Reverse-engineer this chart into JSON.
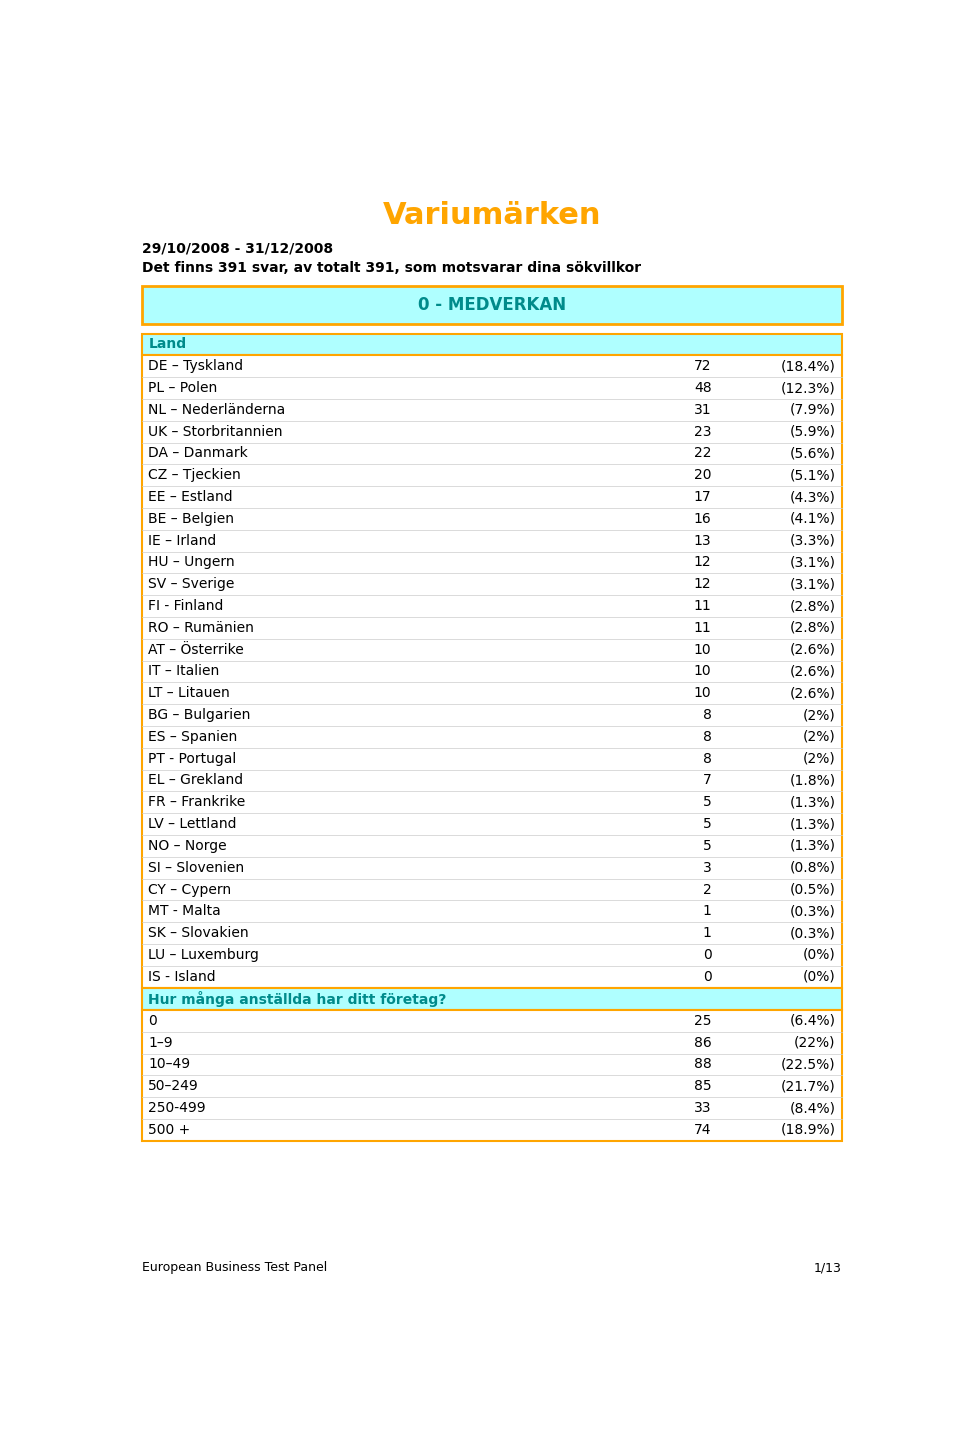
{
  "title": "Variumärken",
  "title_color": "#FFA500",
  "date_line": "29/10/2008 - 31/12/2008",
  "desc_line": "Det finns 391 svar, av totalt 391, som motsvarar dina sökvillkor",
  "section_title": "0 - MEDVERKAN",
  "table1_header": "Land",
  "table1_rows": [
    [
      "DE – Tyskland",
      "72",
      "(18.4%)"
    ],
    [
      "PL – Polen",
      "48",
      "(12.3%)"
    ],
    [
      "NL – Nederländerna",
      "31",
      "(7.9%)"
    ],
    [
      "UK – Storbritannien",
      "23",
      "(5.9%)"
    ],
    [
      "DA – Danmark",
      "22",
      "(5.6%)"
    ],
    [
      "CZ – Tjeckien",
      "20",
      "(5.1%)"
    ],
    [
      "EE – Estland",
      "17",
      "(4.3%)"
    ],
    [
      "BE – Belgien",
      "16",
      "(4.1%)"
    ],
    [
      "IE – Irland",
      "13",
      "(3.3%)"
    ],
    [
      "HU – Ungern",
      "12",
      "(3.1%)"
    ],
    [
      "SV – Sverige",
      "12",
      "(3.1%)"
    ],
    [
      "FI - Finland",
      "11",
      "(2.8%)"
    ],
    [
      "RO – Rumänien",
      "11",
      "(2.8%)"
    ],
    [
      "AT – Österrike",
      "10",
      "(2.6%)"
    ],
    [
      "IT – Italien",
      "10",
      "(2.6%)"
    ],
    [
      "LT – Litauen",
      "10",
      "(2.6%)"
    ],
    [
      "BG – Bulgarien",
      "8",
      "(2%)"
    ],
    [
      "ES – Spanien",
      "8",
      "(2%)"
    ],
    [
      "PT - Portugal",
      "8",
      "(2%)"
    ],
    [
      "EL – Grekland",
      "7",
      "(1.8%)"
    ],
    [
      "FR – Frankrike",
      "5",
      "(1.3%)"
    ],
    [
      "LV – Lettland",
      "5",
      "(1.3%)"
    ],
    [
      "NO – Norge",
      "5",
      "(1.3%)"
    ],
    [
      "SI – Slovenien",
      "3",
      "(0.8%)"
    ],
    [
      "CY – Cypern",
      "2",
      "(0.5%)"
    ],
    [
      "MT - Malta",
      "1",
      "(0.3%)"
    ],
    [
      "SK – Slovakien",
      "1",
      "(0.3%)"
    ],
    [
      "LU – Luxemburg",
      "0",
      "(0%)"
    ],
    [
      "IS - Island",
      "0",
      "(0%)"
    ]
  ],
  "table2_header": "Hur många anställda har ditt företag?",
  "table2_rows": [
    [
      "0",
      "25",
      "(6.4%)"
    ],
    [
      "1–9",
      "86",
      "(22%)"
    ],
    [
      "10–49",
      "88",
      "(22.5%)"
    ],
    [
      "50–249",
      "85",
      "(21.7%)"
    ],
    [
      "250-499",
      "33",
      "(8.4%)"
    ],
    [
      "500 +",
      "74",
      "(18.9%)"
    ]
  ],
  "footer_left": "European Business Test Panel",
  "footer_right": "1/13",
  "header_bg": "#AFFFFF",
  "border_color": "#FFA500",
  "text_color": "#000000",
  "teal_color": "#008B8B",
  "separator_color": "#cccccc"
}
